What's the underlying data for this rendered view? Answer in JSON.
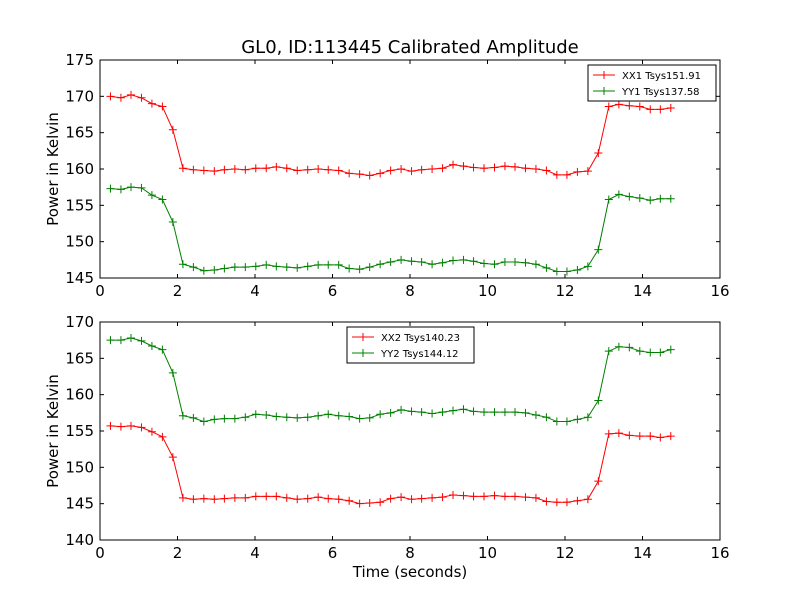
{
  "title": "GL0, ID:113445 Calibrated Amplitude",
  "chart_data": [
    {
      "type": "line",
      "title": "GL0, ID:113445 Calibrated Amplitude",
      "xlabel": "",
      "ylabel": "Power in Kelvin",
      "xlim": [
        0,
        16
      ],
      "ylim": [
        145,
        175
      ],
      "xticks": [
        "0",
        "2",
        "4",
        "6",
        "8",
        "10",
        "12",
        "14",
        "16"
      ],
      "yticks": [
        "145",
        "150",
        "155",
        "160",
        "165",
        "170",
        "175"
      ],
      "grid": false,
      "legend_position": "upper-right",
      "x": [
        0.27,
        0.54,
        0.8,
        1.07,
        1.34,
        1.61,
        1.88,
        2.14,
        2.41,
        2.68,
        2.95,
        3.21,
        3.48,
        3.75,
        4.02,
        4.29,
        4.55,
        4.82,
        5.09,
        5.36,
        5.63,
        5.89,
        6.16,
        6.43,
        6.7,
        6.96,
        7.23,
        7.5,
        7.77,
        8.04,
        8.3,
        8.57,
        8.84,
        9.11,
        9.38,
        9.64,
        9.91,
        10.18,
        10.45,
        10.71,
        10.98,
        11.25,
        11.52,
        11.79,
        12.05,
        12.32,
        12.59,
        12.86,
        13.13,
        13.39,
        13.66,
        13.93,
        14.2,
        14.46,
        14.73
      ],
      "series": [
        {
          "name": "XX1 Tsys151.91",
          "color": "#ff0000",
          "values": [
            170.0,
            169.8,
            170.2,
            169.8,
            169.0,
            168.6,
            165.4,
            160.1,
            159.9,
            159.8,
            159.7,
            159.9,
            160.0,
            159.9,
            160.1,
            160.1,
            160.3,
            160.1,
            159.8,
            159.9,
            160.0,
            159.9,
            159.8,
            159.4,
            159.3,
            159.1,
            159.4,
            159.8,
            160.0,
            159.7,
            159.9,
            160.0,
            160.1,
            160.6,
            160.4,
            160.2,
            160.1,
            160.2,
            160.4,
            160.3,
            160.1,
            160.0,
            159.8,
            159.2,
            159.2,
            159.6,
            159.7,
            162.2,
            168.6,
            168.9,
            168.7,
            168.6,
            168.2,
            168.2,
            168.4
          ]
        },
        {
          "name": "YY1 Tsys137.58",
          "color": "#008000",
          "values": [
            157.3,
            157.2,
            157.5,
            157.4,
            156.4,
            155.8,
            152.7,
            146.9,
            146.5,
            146.0,
            146.1,
            146.3,
            146.5,
            146.5,
            146.6,
            146.8,
            146.6,
            146.5,
            146.4,
            146.6,
            146.8,
            146.8,
            146.8,
            146.3,
            146.2,
            146.5,
            146.9,
            147.2,
            147.5,
            147.3,
            147.2,
            146.9,
            147.1,
            147.4,
            147.5,
            147.3,
            147.0,
            146.9,
            147.2,
            147.2,
            147.1,
            146.9,
            146.4,
            145.9,
            145.9,
            146.1,
            146.6,
            148.9,
            155.8,
            156.5,
            156.2,
            156.0,
            155.7,
            155.9,
            155.9
          ]
        }
      ]
    },
    {
      "type": "line",
      "title": "",
      "xlabel": "Time (seconds)",
      "ylabel": "Power in Kelvin",
      "xlim": [
        0,
        16
      ],
      "ylim": [
        140,
        170
      ],
      "xticks": [
        "0",
        "2",
        "4",
        "6",
        "8",
        "10",
        "12",
        "14",
        "16"
      ],
      "yticks": [
        "140",
        "145",
        "150",
        "155",
        "160",
        "165",
        "170"
      ],
      "grid": false,
      "legend_position": "upper-center",
      "x": [
        0.27,
        0.54,
        0.8,
        1.07,
        1.34,
        1.61,
        1.88,
        2.14,
        2.41,
        2.68,
        2.95,
        3.21,
        3.48,
        3.75,
        4.02,
        4.29,
        4.55,
        4.82,
        5.09,
        5.36,
        5.63,
        5.89,
        6.16,
        6.43,
        6.7,
        6.96,
        7.23,
        7.5,
        7.77,
        8.04,
        8.3,
        8.57,
        8.84,
        9.11,
        9.38,
        9.64,
        9.91,
        10.18,
        10.45,
        10.71,
        10.98,
        11.25,
        11.52,
        11.79,
        12.05,
        12.32,
        12.59,
        12.86,
        13.13,
        13.39,
        13.66,
        13.93,
        14.2,
        14.46,
        14.73
      ],
      "series": [
        {
          "name": "XX2 Tsys140.23",
          "color": "#ff0000",
          "values": [
            155.7,
            155.6,
            155.7,
            155.5,
            154.9,
            154.2,
            151.4,
            145.8,
            145.6,
            145.7,
            145.6,
            145.7,
            145.8,
            145.8,
            146.0,
            146.0,
            146.0,
            145.8,
            145.6,
            145.7,
            145.9,
            145.7,
            145.6,
            145.4,
            145.0,
            145.1,
            145.2,
            145.7,
            145.9,
            145.6,
            145.7,
            145.8,
            145.9,
            146.2,
            146.1,
            146.0,
            146.0,
            146.1,
            146.0,
            146.0,
            145.9,
            145.8,
            145.3,
            145.2,
            145.2,
            145.4,
            145.6,
            148.1,
            154.6,
            154.7,
            154.4,
            154.3,
            154.3,
            154.1,
            154.3
          ]
        },
        {
          "name": "YY2 Tsys144.12",
          "color": "#008000",
          "values": [
            167.5,
            167.5,
            167.8,
            167.4,
            166.7,
            166.2,
            163.0,
            157.1,
            156.8,
            156.3,
            156.6,
            156.7,
            156.7,
            156.9,
            157.3,
            157.2,
            157.0,
            156.9,
            156.8,
            156.9,
            157.1,
            157.3,
            157.1,
            157.0,
            156.7,
            156.8,
            157.3,
            157.5,
            157.9,
            157.7,
            157.6,
            157.4,
            157.6,
            157.8,
            158.0,
            157.7,
            157.6,
            157.6,
            157.6,
            157.6,
            157.5,
            157.2,
            156.9,
            156.3,
            156.3,
            156.6,
            156.9,
            159.2,
            166.0,
            166.6,
            166.5,
            166.0,
            165.8,
            165.8,
            166.2
          ]
        }
      ]
    }
  ]
}
